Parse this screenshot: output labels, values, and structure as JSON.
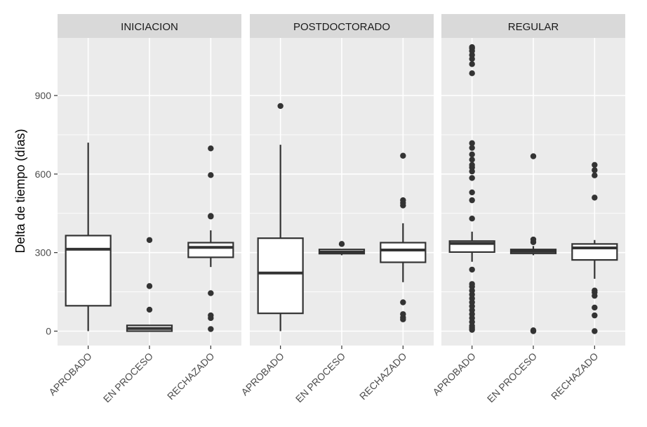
{
  "chart_data": {
    "type": "boxplot",
    "ylabel": "Delta de tiempo (días)",
    "xlabel": "",
    "ylim": [
      -55,
      1120
    ],
    "yticks": [
      0,
      300,
      600,
      900
    ],
    "yminor": [
      150,
      450,
      750
    ],
    "categories": [
      "APROBADO",
      "EN PROCESO",
      "RECHAZADO"
    ],
    "panels": [
      {
        "name": "INICIACION",
        "boxes": [
          {
            "category": "APROBADO",
            "min": 0,
            "q1": 97,
            "median": 313,
            "q3": 365,
            "max": 720,
            "outliers": []
          },
          {
            "category": "EN PROCESO",
            "min": 0,
            "q1": 0,
            "median": 10,
            "q3": 22,
            "max": 22,
            "outliers": [
              82,
              172,
              348
            ]
          },
          {
            "category": "RECHAZADO",
            "min": 245,
            "q1": 282,
            "median": 320,
            "q3": 338,
            "max": 385,
            "outliers": [
              8,
              50,
              60,
              145,
              438,
              440,
              596,
              698
            ]
          }
        ]
      },
      {
        "name": "POSTDOCTORADO",
        "boxes": [
          {
            "category": "APROBADO",
            "min": 0,
            "q1": 68,
            "median": 222,
            "q3": 355,
            "max": 712,
            "outliers": [
              860
            ]
          },
          {
            "category": "EN PROCESO",
            "min": 290,
            "q1": 296,
            "median": 302,
            "q3": 312,
            "max": 312,
            "outliers": [
              333
            ]
          },
          {
            "category": "RECHAZADO",
            "min": 187,
            "q1": 263,
            "median": 310,
            "q3": 338,
            "max": 412,
            "outliers": [
              45,
              52,
              65,
              110,
              480,
              490,
              500,
              670
            ]
          }
        ]
      },
      {
        "name": "REGULAR",
        "boxes": [
          {
            "category": "APROBADO",
            "min": 265,
            "q1": 302,
            "median": 335,
            "q3": 344,
            "max": 380,
            "outliers": [
              5,
              12,
              20,
              35,
              50,
              65,
              80,
              95,
              110,
              125,
              140,
              155,
              170,
              180,
              235,
              430,
              500,
              530,
              585,
              610,
              625,
              635,
              655,
              675,
              700,
              718,
              985,
              1020,
              1040,
              1055,
              1070,
              1080,
              1085
            ]
          },
          {
            "category": "EN PROCESO",
            "min": 290,
            "q1": 297,
            "median": 305,
            "q3": 312,
            "max": 325,
            "outliers": [
              0,
              3,
              340,
              350,
              668
            ]
          },
          {
            "category": "RECHAZADO",
            "min": 200,
            "q1": 272,
            "median": 318,
            "q3": 333,
            "max": 348,
            "outliers": [
              0,
              60,
              90,
              135,
              148,
              155,
              510,
              595,
              615,
              635
            ]
          }
        ]
      }
    ]
  }
}
